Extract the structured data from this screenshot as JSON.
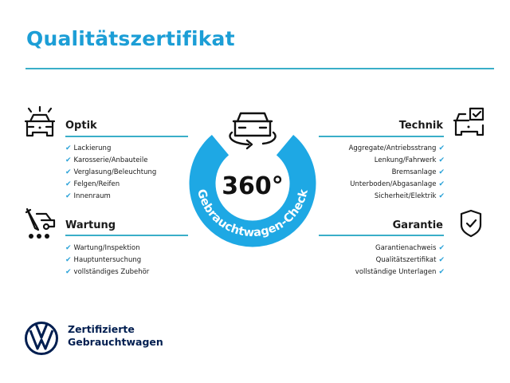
{
  "title": "Qualitätszertifikat",
  "center": {
    "value": "360°",
    "ring_text": "Gebrauchtwagen-Check",
    "ring_color": "#1ea8e4"
  },
  "colors": {
    "accent": "#1c9ed6",
    "check": "#2aa2d8",
    "brand": "#001e50"
  },
  "sections": {
    "optik": {
      "icon": "car-headlights-icon",
      "heading": "Optik",
      "items": [
        "Lackierung",
        "Karosserie/Anbauteile",
        "Verglasung/Beleuchtung",
        "Felgen/Reifen",
        "Innenraum"
      ]
    },
    "wartung": {
      "icon": "maintenance-car-icon",
      "heading": "Wartung",
      "items": [
        "Wartung/Inspektion",
        "Hauptuntersuchung",
        "vollständiges Zubehör"
      ]
    },
    "technik": {
      "icon": "car-checkbox-icon",
      "heading": "Technik",
      "items": [
        "Aggregate/Antriebsstrang",
        "Lenkung/Fahrwerk",
        "Bremsanlage",
        "Unterboden/Abgasanlage",
        "Sicherheit/Elektrik"
      ]
    },
    "garantie": {
      "icon": "shield-check-icon",
      "heading": "Garantie",
      "items": [
        "Garantienachweis",
        "Qualitätszertifikat",
        "vollständige Unterlagen"
      ]
    }
  },
  "check_glyph": "✔",
  "footer": {
    "line1": "Zertifizierte",
    "line2": "Gebrauchtwagen",
    "logo": "vw-logo"
  }
}
